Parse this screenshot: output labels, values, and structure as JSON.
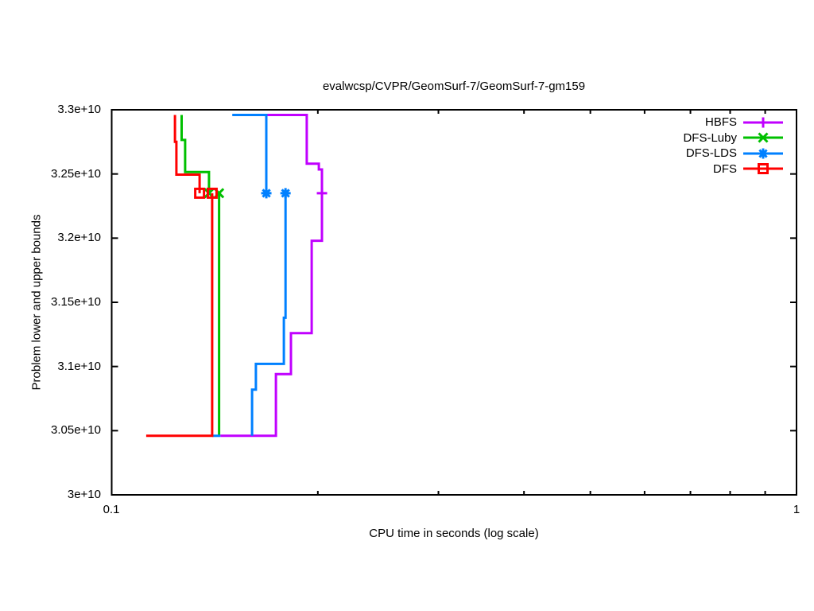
{
  "chart_data": {
    "type": "line",
    "title": "evalwcsp/CVPR/GeomSurf-7/GeomSurf-7-gm159",
    "xlabel": "CPU time in seconds (log scale)",
    "ylabel": "Problem lower and upper bounds",
    "grid": false,
    "x_axis": {
      "scale": "log",
      "min": 0.1,
      "max": 1,
      "major_ticks": [
        0.1,
        1
      ],
      "major_tick_labels": [
        "0.1",
        "1"
      ],
      "minor_ticks": [
        0.2,
        0.3,
        0.4,
        0.5,
        0.6,
        0.7,
        0.8,
        0.9
      ]
    },
    "y_axis": {
      "scale": "linear",
      "min": 30000000000.0,
      "max": 33000000000.0,
      "ticks": [
        30000000000.0,
        30500000000.0,
        31000000000.0,
        31500000000.0,
        32000000000.0,
        32500000000.0,
        33000000000.0
      ],
      "tick_labels": [
        "3e+10",
        "3.05e+10",
        "3.1e+10",
        "3.15e+10",
        "3.2e+10",
        "3.25e+10",
        "3.3e+10"
      ]
    },
    "legend": {
      "position": "top-right-inside"
    },
    "optimum_value": 32350000000.0,
    "series": [
      {
        "name": "HBFS",
        "color": "#C000FF",
        "marker": "plus",
        "upper_bound": [
          [
            0.1682,
            32960000000.0
          ],
          [
            0.1927,
            32960000000.0
          ],
          [
            0.1927,
            32580000000.0
          ],
          [
            0.2007,
            32580000000.0
          ],
          [
            0.2007,
            32535000000.0
          ],
          [
            0.2028,
            32535000000.0
          ],
          [
            0.2028,
            32350000000.0
          ]
        ],
        "lower_bound": [
          [
            0.1441,
            30460000000.0
          ],
          [
            0.1737,
            30460000000.0
          ],
          [
            0.1737,
            30940000000.0
          ],
          [
            0.1827,
            30940000000.0
          ],
          [
            0.1827,
            31260000000.0
          ],
          [
            0.1959,
            31260000000.0
          ],
          [
            0.1959,
            31980000000.0
          ],
          [
            0.2028,
            31980000000.0
          ],
          [
            0.2028,
            32350000000.0
          ]
        ],
        "markers": [
          [
            0.2028,
            32350000000.0
          ]
        ]
      },
      {
        "name": "DFS-Luby",
        "color": "#00C000",
        "marker": "cross",
        "upper_bound": [
          [
            0.1265,
            32960000000.0
          ],
          [
            0.1265,
            32765000000.0
          ],
          [
            0.128,
            32765000000.0
          ],
          [
            0.128,
            32515000000.0
          ],
          [
            0.1387,
            32515000000.0
          ],
          [
            0.1387,
            32350000000.0
          ]
        ],
        "lower_bound": [
          [
            0.1435,
            30460000000.0
          ],
          [
            0.1435,
            32350000000.0
          ]
        ],
        "markers": [
          [
            0.1387,
            32350000000.0
          ],
          [
            0.1435,
            32350000000.0
          ]
        ]
      },
      {
        "name": "DFS-LDS",
        "color": "#0080FF",
        "marker": "asterisk",
        "upper_bound": [
          [
            0.15,
            32960000000.0
          ],
          [
            0.1682,
            32960000000.0
          ],
          [
            0.1682,
            32350000000.0
          ]
        ],
        "lower_bound": [
          [
            0.1603,
            30460000000.0
          ],
          [
            0.1603,
            30820000000.0
          ],
          [
            0.1624,
            30820000000.0
          ],
          [
            0.1624,
            31020000000.0
          ],
          [
            0.1784,
            31020000000.0
          ],
          [
            0.1784,
            31380000000.0
          ],
          [
            0.1794,
            31380000000.0
          ],
          [
            0.1794,
            32350000000.0
          ]
        ],
        "lower_bound_stub": [
          [
            0.1402,
            30460000000.0
          ],
          [
            0.1441,
            30460000000.0
          ]
        ],
        "markers": [
          [
            0.1682,
            32350000000.0
          ],
          [
            0.1794,
            32350000000.0
          ]
        ]
      },
      {
        "name": "DFS",
        "color": "#FF0000",
        "marker": "square",
        "upper_bound": [
          [
            0.1237,
            32960000000.0
          ],
          [
            0.1237,
            32750000000.0
          ],
          [
            0.1243,
            32750000000.0
          ],
          [
            0.1243,
            32495000000.0
          ],
          [
            0.1344,
            32495000000.0
          ],
          [
            0.1344,
            32350000000.0
          ]
        ],
        "lower_bound": [
          [
            0.1123,
            30460000000.0
          ],
          [
            0.1402,
            30460000000.0
          ],
          [
            0.1402,
            32350000000.0
          ]
        ],
        "markers": [
          [
            0.1344,
            32350000000.0
          ],
          [
            0.1402,
            32350000000.0
          ]
        ]
      }
    ]
  }
}
